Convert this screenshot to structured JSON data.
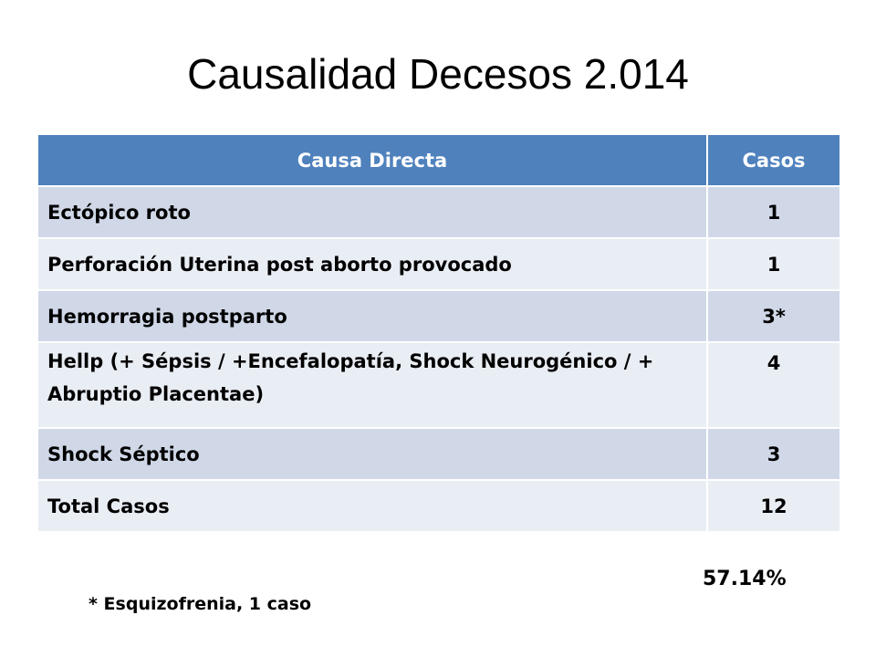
{
  "slide": {
    "title": "Causalidad Decesos 2.014",
    "table": {
      "headers": {
        "cause": "Causa Directa",
        "cases": "Casos"
      },
      "rows": [
        {
          "cause": "Ectópico roto",
          "cases": "1"
        },
        {
          "cause": "Perforación Uterina post aborto provocado",
          "cases": "1"
        },
        {
          "cause": "Hemorragia postparto",
          "cases": "3*"
        },
        {
          "cause": "Hellp (+ Sépsis / +Encefalopatía, Shock Neurogénico / + Abruptio Placentae)",
          "cases": "4"
        },
        {
          "cause": "Shock Séptico",
          "cases": "3"
        },
        {
          "cause": "Total Casos",
          "cases": "12"
        }
      ]
    },
    "percentage": "57.14%",
    "footnote": "* Esquizofrenia, 1 caso"
  },
  "colors": {
    "header_bg": "#4f81bd",
    "band_dark": "#d0d8e8",
    "band_light": "#e9edf4"
  }
}
